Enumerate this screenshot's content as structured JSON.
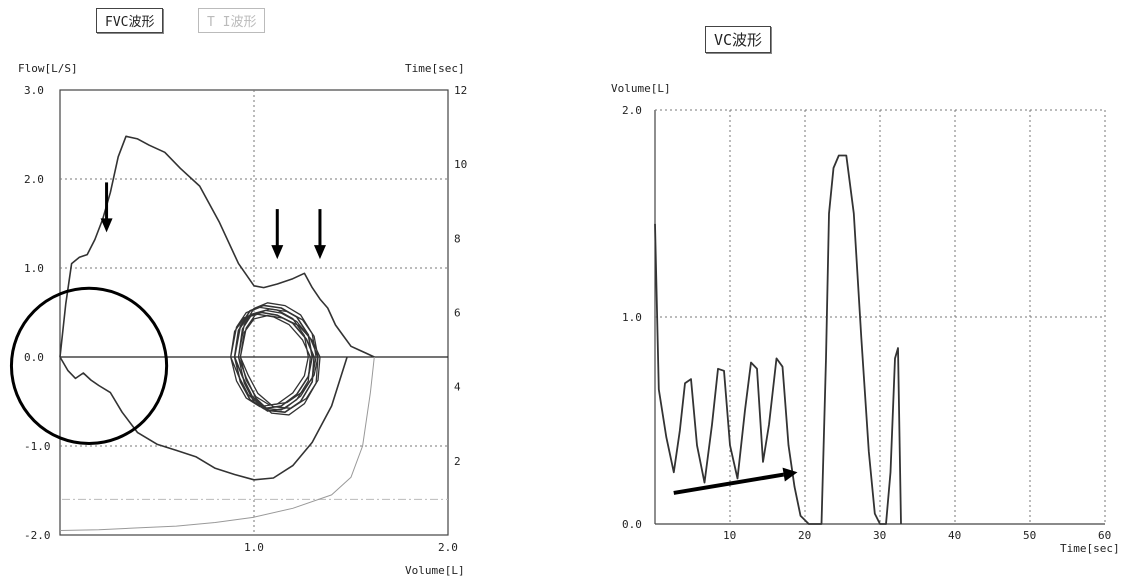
{
  "left_panel": {
    "tabs": [
      {
        "label": "FVC波形",
        "enabled": true
      },
      {
        "label": "T I波形",
        "enabled": false
      }
    ]
  },
  "right_panel": {
    "tabs": [
      {
        "label": "VC波形",
        "enabled": true
      }
    ]
  },
  "colors": {
    "trace": "#333333",
    "grid": "#777777",
    "annotation": "#000000",
    "faint_trace": "#999999"
  },
  "chart_data": [
    {
      "type": "line",
      "title": "",
      "xlabel": "Volume[L]",
      "ylabel": "Flow[L/S]",
      "y2label": "Time[sec]",
      "xlim": [
        0,
        2.0
      ],
      "ylim": [
        -2.0,
        3.0
      ],
      "y2lim": [
        0,
        12
      ],
      "x_ticks": [
        "1.0",
        "2.0"
      ],
      "y_ticks": [
        "3.0",
        "2.0",
        "1.0",
        "0.0",
        "-1.0",
        "-2.0"
      ],
      "y2_ticks": [
        "12",
        "10",
        "8",
        "6",
        "4",
        "2"
      ],
      "grid": true,
      "annotations": [
        {
          "type": "arrow-down",
          "x": 0.24,
          "y": 1.4
        },
        {
          "type": "arrow-down",
          "x": 1.12,
          "y": 1.1
        },
        {
          "type": "arrow-down",
          "x": 1.34,
          "y": 1.1
        },
        {
          "type": "circle",
          "x": 0.16,
          "y": -0.1,
          "r_x": 0.4
        }
      ],
      "series": [
        {
          "role": "forced-expiration",
          "x": [
            0.0,
            0.03,
            0.06,
            0.1,
            0.14,
            0.18,
            0.22,
            0.26,
            0.3,
            0.34,
            0.4,
            0.46,
            0.54,
            0.62,
            0.72,
            0.82,
            0.92,
            1.0,
            1.05,
            1.12,
            1.2,
            1.26,
            1.3,
            1.34,
            1.38,
            1.42,
            1.46,
            1.5,
            1.54,
            1.58,
            1.62
          ],
          "y": [
            0.0,
            0.6,
            1.05,
            1.12,
            1.15,
            1.32,
            1.55,
            1.85,
            2.25,
            2.48,
            2.45,
            2.38,
            2.3,
            2.12,
            1.92,
            1.52,
            1.05,
            0.8,
            0.78,
            0.82,
            0.88,
            0.94,
            0.78,
            0.65,
            0.55,
            0.36,
            0.24,
            0.12,
            0.08,
            0.04,
            0.0
          ]
        },
        {
          "role": "inspiration",
          "x": [
            0.0,
            0.04,
            0.08,
            0.12,
            0.16,
            0.2,
            0.26,
            0.32,
            0.4,
            0.5,
            0.6,
            0.7,
            0.8,
            0.9,
            1.0,
            1.1,
            1.2,
            1.3,
            1.4,
            1.48
          ],
          "y": [
            0.0,
            -0.15,
            -0.24,
            -0.18,
            -0.26,
            -0.32,
            -0.4,
            -0.62,
            -0.85,
            -0.98,
            -1.05,
            -1.12,
            -1.25,
            -1.32,
            -1.38,
            -1.36,
            -1.22,
            -0.96,
            -0.55,
            0.0
          ]
        },
        {
          "role": "tidal-loops",
          "x": [
            0.9,
            0.93,
            0.98,
            1.05,
            1.14,
            1.22,
            1.28,
            1.3,
            1.28,
            1.22,
            1.14,
            1.05,
            0.98,
            0.93,
            0.9,
            0.92,
            0.97,
            1.04,
            1.12,
            1.2,
            1.27,
            1.31,
            1.3,
            1.24,
            1.16,
            1.07,
            0.99,
            0.94,
            0.9
          ],
          "y": [
            0.0,
            0.35,
            0.52,
            0.58,
            0.55,
            0.45,
            0.25,
            0.0,
            -0.22,
            -0.42,
            -0.55,
            -0.58,
            -0.48,
            -0.28,
            0.0,
            0.3,
            0.46,
            0.5,
            0.47,
            0.38,
            0.2,
            0.0,
            -0.28,
            -0.5,
            -0.62,
            -0.6,
            -0.44,
            -0.22,
            0.0
          ]
        },
        {
          "role": "faint-volume-time",
          "x": [
            0.0,
            0.2,
            0.4,
            0.6,
            0.8,
            1.0,
            1.2,
            1.4,
            1.5,
            1.56,
            1.6,
            1.62
          ],
          "y": [
            -1.95,
            -1.94,
            -1.92,
            -1.9,
            -1.86,
            -1.8,
            -1.7,
            -1.55,
            -1.35,
            -1.0,
            -0.4,
            0.0
          ]
        }
      ]
    },
    {
      "type": "line",
      "title": "",
      "xlabel": "Time[sec]",
      "ylabel": "Volume[L]",
      "xlim": [
        0,
        60
      ],
      "ylim": [
        0,
        2.0
      ],
      "x_ticks": [
        "10",
        "20",
        "30",
        "40",
        "50",
        "60"
      ],
      "y_ticks": [
        "2.0",
        "1.0",
        "0.0"
      ],
      "grid": true,
      "annotations": [
        {
          "type": "arrow",
          "x_from": 2.5,
          "y_from": 0.15,
          "x_to": 19.0,
          "y_to": 0.25
        }
      ],
      "series": [
        {
          "role": "vc-volume",
          "x": [
            0,
            0.5,
            1.5,
            2.5,
            3.3,
            4.0,
            4.8,
            5.6,
            6.6,
            7.6,
            8.4,
            9.2,
            10.0,
            11.0,
            12.0,
            12.8,
            13.6,
            14.4,
            15.2,
            16.2,
            17.0,
            17.8,
            18.6,
            19.4,
            20.5,
            21.5,
            22.2,
            22.8,
            23.2,
            23.8,
            24.5,
            25.5,
            26.5,
            27.5,
            28.5,
            29.3,
            30.0,
            30.8,
            31.4,
            32.0,
            32.4,
            32.8
          ],
          "y": [
            1.45,
            0.65,
            0.42,
            0.25,
            0.45,
            0.68,
            0.7,
            0.38,
            0.2,
            0.48,
            0.75,
            0.74,
            0.38,
            0.22,
            0.55,
            0.78,
            0.75,
            0.3,
            0.48,
            0.8,
            0.76,
            0.38,
            0.18,
            0.04,
            0.0,
            0.0,
            0.0,
            0.8,
            1.5,
            1.72,
            1.78,
            1.78,
            1.5,
            0.9,
            0.35,
            0.05,
            0.0,
            0.0,
            0.25,
            0.8,
            0.85,
            0.0
          ]
        }
      ]
    }
  ]
}
